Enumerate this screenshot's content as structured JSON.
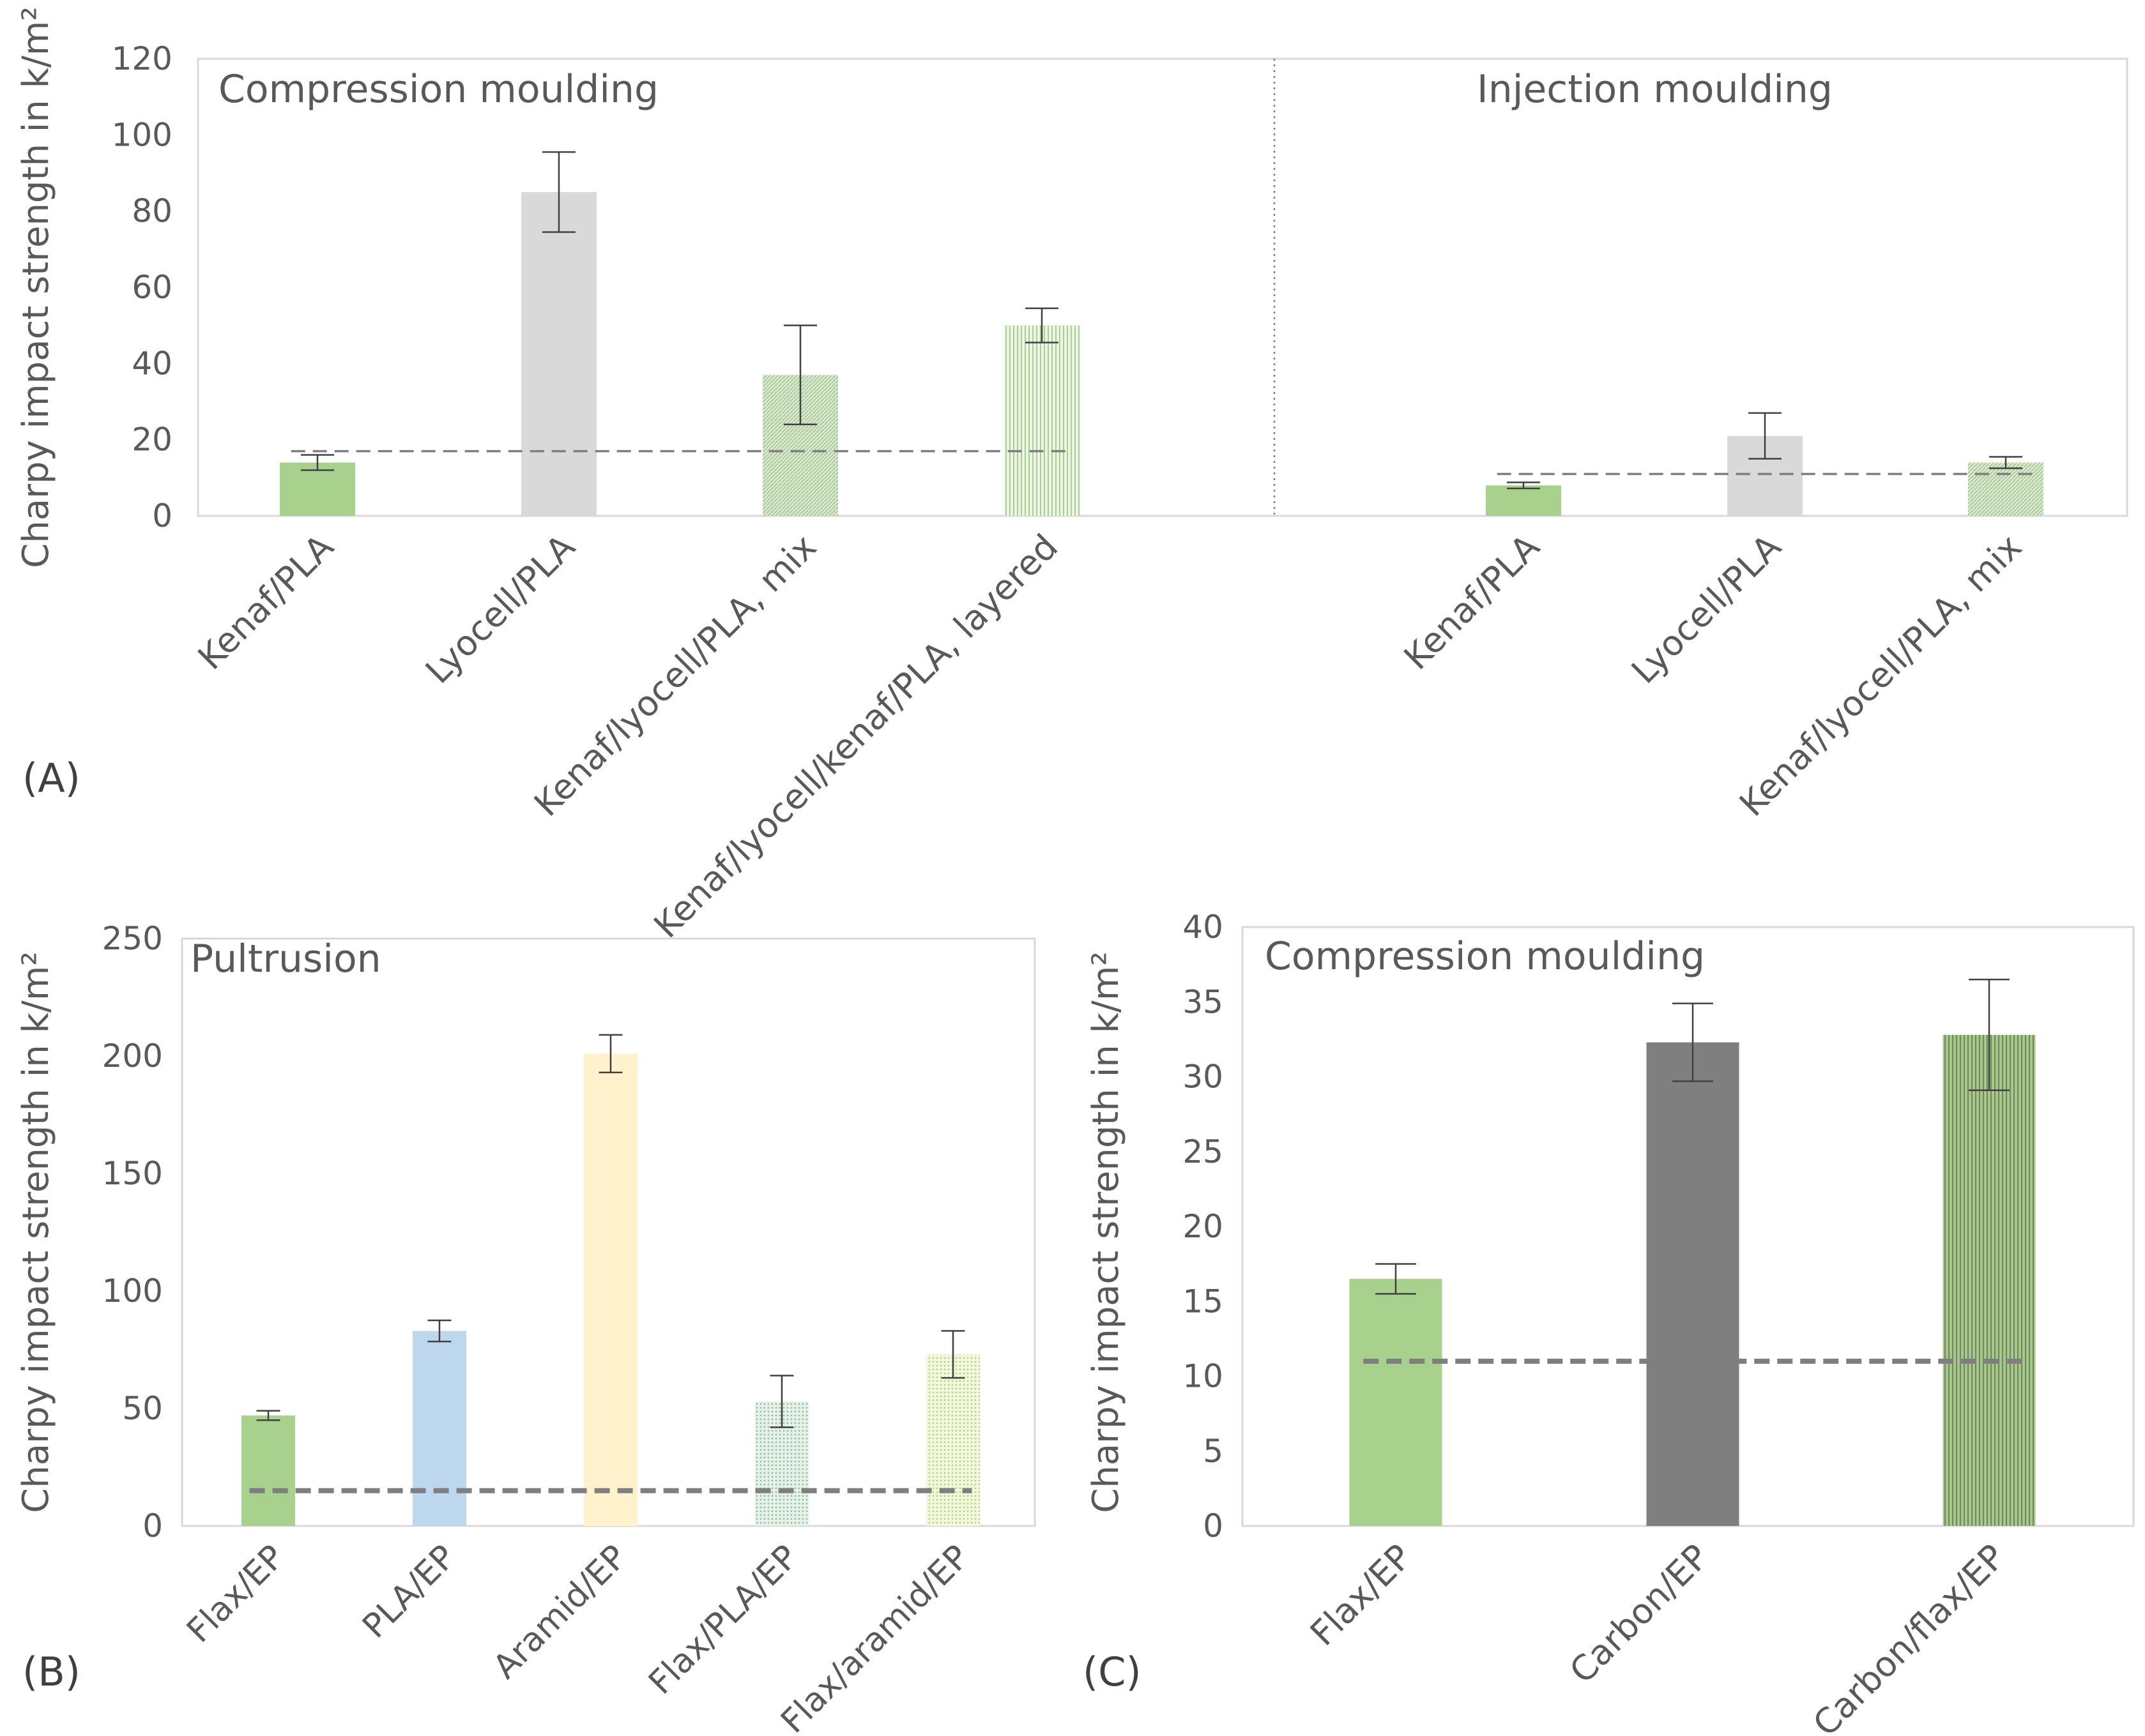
{
  "figure_labels": [
    "(A)",
    "(B)",
    "(C)"
  ],
  "chart_data": [
    {
      "type": "bar",
      "panel": "(A)",
      "ylabel": "Charpy impact strength in k/m²",
      "ylim": [
        0,
        120
      ],
      "yticks": [
        0,
        20,
        40,
        60,
        80,
        100,
        120
      ],
      "groups": [
        {
          "title": "Compression moulding",
          "categories": [
            "Kenaf/PLA",
            "Lyocell/PLA",
            "Kenaf/lyocell/PLA, mix",
            "Kenaf/lyocell/kenaf/PLA, layered"
          ],
          "values": [
            14,
            85,
            37,
            50
          ],
          "errors": [
            2,
            10.5,
            13,
            4.5
          ],
          "colors": [
            "#a9d18e",
            "#d9d9d9",
            "#c5dcba",
            "#d6e8cc"
          ],
          "reference_line": 17
        },
        {
          "title": "Injection moulding",
          "categories": [
            "Kenaf/PLA",
            "Lyocell/PLA",
            "Kenaf/lyocell/PLA, mix"
          ],
          "values": [
            8,
            21,
            14
          ],
          "errors": [
            0.8,
            6,
            1.5
          ],
          "colors": [
            "#a9d18e",
            "#d9d9d9",
            "#c5dcba"
          ],
          "reference_line": 11
        }
      ]
    },
    {
      "type": "bar",
      "panel": "(B)",
      "title": "Pultrusion",
      "ylabel": "Charpy impact strength in k/m²",
      "ylim": [
        0,
        250
      ],
      "yticks": [
        0,
        50,
        100,
        150,
        200,
        250
      ],
      "categories": [
        "Flax/EP",
        "PLA/EP",
        "Aramid/EP",
        "Flax/PLA/EP",
        "Flax/aramid/EP"
      ],
      "values": [
        47,
        83,
        201,
        53,
        73
      ],
      "errors": [
        2,
        4.5,
        8,
        11,
        10
      ],
      "colors": [
        "#a9d18e",
        "#bdd7ee",
        "#fff2cc",
        "#cfe3d4",
        "#e2efc4"
      ],
      "reference_line": 15
    },
    {
      "type": "bar",
      "panel": "(C)",
      "title": "Compression moulding",
      "ylabel": "Charpy impact strength in k/m²",
      "ylim": [
        0,
        40
      ],
      "yticks": [
        0,
        5,
        10,
        15,
        20,
        25,
        30,
        35,
        40
      ],
      "categories": [
        "Flax/EP",
        "Carbon/EP",
        "Carbon/flax/EP"
      ],
      "values": [
        16.5,
        32.3,
        32.8
      ],
      "errors": [
        1,
        2.6,
        3.7
      ],
      "colors": [
        "#a9d18e",
        "#7f7f7f",
        "#8faa78"
      ],
      "reference_line": 11
    }
  ]
}
